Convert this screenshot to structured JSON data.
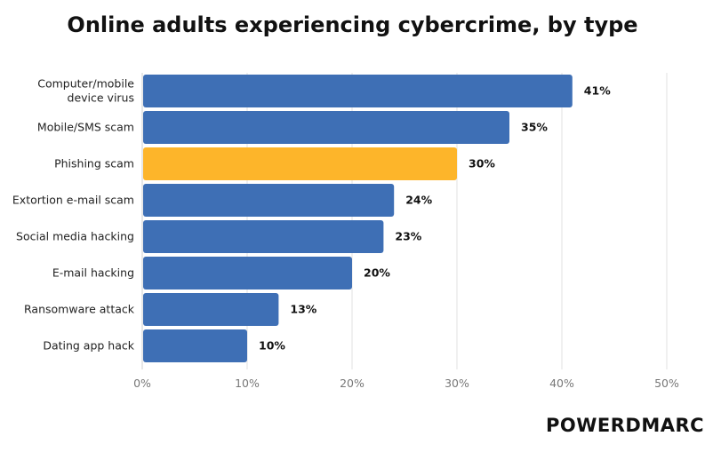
{
  "logo_text": "POWERDMARC",
  "colors": {
    "default_bar": "#3E6FB5",
    "highlight_bar": "#FDB52A",
    "grid": "#E2E2E2"
  },
  "chart_data": {
    "type": "bar",
    "orientation": "horizontal",
    "title": "Online adults experiencing cybercrime, by type",
    "categories": [
      "Computer/mobile device virus",
      "Mobile/SMS scam",
      "Phishing scam",
      "Extortion e-mail scam",
      "Social media hacking",
      "E-mail hacking",
      "Ransomware attack",
      "Dating app hack"
    ],
    "category_lines": [
      [
        "Computer/mobile",
        "device virus"
      ],
      [
        "Mobile/SMS scam"
      ],
      [
        "Phishing scam"
      ],
      [
        "Extortion e-mail scam"
      ],
      [
        "Social media hacking"
      ],
      [
        "E-mail hacking"
      ],
      [
        "Ransomware attack"
      ],
      [
        "Dating app hack"
      ]
    ],
    "values": [
      41,
      35,
      30,
      24,
      23,
      20,
      13,
      10
    ],
    "value_labels": [
      "41%",
      "35%",
      "30%",
      "24%",
      "23%",
      "20%",
      "13%",
      "10%"
    ],
    "highlight": "Phishing scam",
    "xlim": [
      0,
      50
    ],
    "xticks": [
      0,
      10,
      20,
      30,
      40,
      50
    ],
    "xtick_labels": [
      "0%",
      "10%",
      "20%",
      "30%",
      "40%",
      "50%"
    ],
    "xlabel": "",
    "ylabel": "",
    "grid": true,
    "legend": "none"
  }
}
